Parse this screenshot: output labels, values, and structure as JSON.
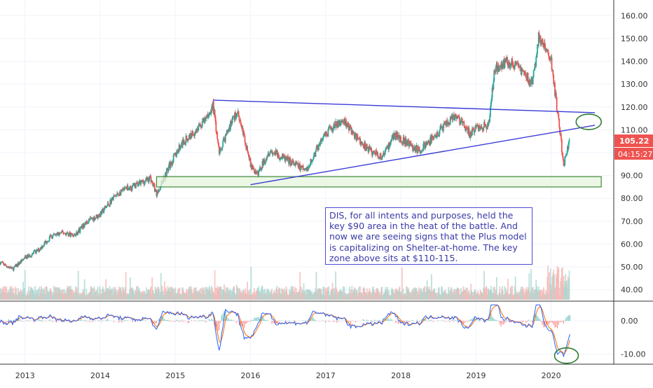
{
  "chart_data": [
    {
      "type": "candlestick",
      "panel": "price",
      "symbol": "DIS",
      "ylim": [
        35,
        165
      ],
      "x_range": [
        "2012-09",
        "2020-11"
      ],
      "y_ticks": [
        "160.00",
        "150.00",
        "140.00",
        "130.00",
        "120.00",
        "110.00",
        "100.00",
        "90.00",
        "80.00",
        "70.00",
        "60.00",
        "50.00",
        "40.00"
      ],
      "y_tick_values": [
        160,
        150,
        140,
        130,
        120,
        110,
        100,
        90,
        80,
        70,
        60,
        50,
        40
      ],
      "up_color": "#26a69a",
      "down_color": "#ef5350",
      "approx_monthly_close": [
        {
          "date": "2012-09",
          "close": 52
        },
        {
          "date": "2012-11",
          "close": 49
        },
        {
          "date": "2013-01",
          "close": 54
        },
        {
          "date": "2013-03",
          "close": 57
        },
        {
          "date": "2013-05",
          "close": 63
        },
        {
          "date": "2013-07",
          "close": 65
        },
        {
          "date": "2013-09",
          "close": 64
        },
        {
          "date": "2013-11",
          "close": 70
        },
        {
          "date": "2014-01",
          "close": 73
        },
        {
          "date": "2014-03",
          "close": 80
        },
        {
          "date": "2014-05",
          "close": 84
        },
        {
          "date": "2014-07",
          "close": 86
        },
        {
          "date": "2014-09",
          "close": 89
        },
        {
          "date": "2014-10",
          "close": 82
        },
        {
          "date": "2014-12",
          "close": 94
        },
        {
          "date": "2015-02",
          "close": 104
        },
        {
          "date": "2015-04",
          "close": 109
        },
        {
          "date": "2015-06",
          "close": 115
        },
        {
          "date": "2015-07",
          "close": 121
        },
        {
          "date": "2015-08",
          "close": 100
        },
        {
          "date": "2015-10",
          "close": 114
        },
        {
          "date": "2015-11",
          "close": 118
        },
        {
          "date": "2016-01",
          "close": 95
        },
        {
          "date": "2016-02",
          "close": 90
        },
        {
          "date": "2016-04",
          "close": 101
        },
        {
          "date": "2016-06",
          "close": 98
        },
        {
          "date": "2016-08",
          "close": 95
        },
        {
          "date": "2016-10",
          "close": 92
        },
        {
          "date": "2016-12",
          "close": 104
        },
        {
          "date": "2017-02",
          "close": 111
        },
        {
          "date": "2017-04",
          "close": 114
        },
        {
          "date": "2017-06",
          "close": 106
        },
        {
          "date": "2017-08",
          "close": 101
        },
        {
          "date": "2017-10",
          "close": 98
        },
        {
          "date": "2017-12",
          "close": 108
        },
        {
          "date": "2018-02",
          "close": 104
        },
        {
          "date": "2018-04",
          "close": 101
        },
        {
          "date": "2018-06",
          "close": 106
        },
        {
          "date": "2018-08",
          "close": 112
        },
        {
          "date": "2018-10",
          "close": 116
        },
        {
          "date": "2018-12",
          "close": 108
        },
        {
          "date": "2019-01",
          "close": 111
        },
        {
          "date": "2019-03",
          "close": 112
        },
        {
          "date": "2019-04",
          "close": 137
        },
        {
          "date": "2019-06",
          "close": 140
        },
        {
          "date": "2019-08",
          "close": 137
        },
        {
          "date": "2019-10",
          "close": 130
        },
        {
          "date": "2019-11",
          "close": 150
        },
        {
          "date": "2019-12",
          "close": 146
        },
        {
          "date": "2020-01",
          "close": 140
        },
        {
          "date": "2020-02",
          "close": 118
        },
        {
          "date": "2020-03",
          "close": 95
        },
        {
          "date": "2020-04",
          "close": 105
        }
      ],
      "last_price": "105.22",
      "countdown": "04:15:27",
      "annotations": {
        "upper_trendline": [
          {
            "date": "2015-07",
            "price": 123
          },
          {
            "date": "2020-08",
            "price": 117.5
          }
        ],
        "lower_trendline": [
          {
            "date": "2016-01",
            "price": 86
          },
          {
            "date": "2020-08",
            "price": 112
          }
        ],
        "support_zone": {
          "from": "2014-10",
          "to": "2020-09",
          "low": 85,
          "high": 89.5
        },
        "ellipse_upper": {
          "date": "2020-07",
          "price": 113.5
        },
        "ellipse_lower": {
          "date": "2020-03",
          "price": -10
        }
      }
    },
    {
      "type": "line",
      "panel": "oscillator",
      "ylim": [
        -13,
        5.5
      ],
      "y_ticks": [
        "0.00",
        "-10.00"
      ],
      "y_tick_values": [
        0,
        -10
      ],
      "series_colors": [
        "#2962ff",
        "#ff6d00"
      ]
    }
  ],
  "x_ticks": [
    {
      "label": "2013",
      "date": "2013-01"
    },
    {
      "label": "2014",
      "date": "2014-01"
    },
    {
      "label": "2015",
      "date": "2015-01"
    },
    {
      "label": "2016",
      "date": "2016-01"
    },
    {
      "label": "2017",
      "date": "2017-01"
    },
    {
      "label": "2018",
      "date": "2018-01"
    },
    {
      "label": "2019",
      "date": "2019-01"
    },
    {
      "label": "2020",
      "date": "2020-01"
    }
  ],
  "note": {
    "text": "DIS, for all intents and purposes, held the key $90 area in the heat of the battle. And now we are seeing signs that the Plus model is capitalizing on Shelter-at-home. The key zone above sits at $110-115."
  },
  "colors": {
    "trendline": "#3b3bd6",
    "zone_fill": "#e6f4dc",
    "zone_stroke": "#3f8a3a",
    "ellipse": "#2e7d32",
    "price_tag": "#ef5350",
    "axis_text": "#333333",
    "separator": "#333333"
  }
}
